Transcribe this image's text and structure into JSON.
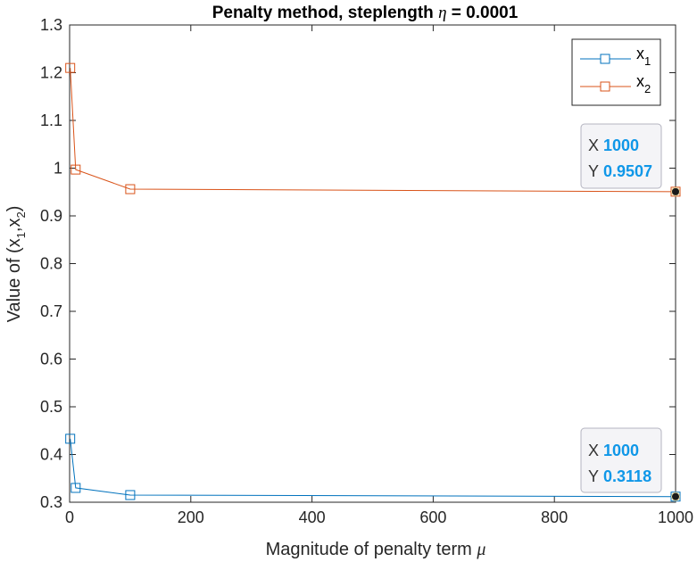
{
  "chart_data": {
    "type": "line",
    "title_prefix": "Penalty method, steplength ",
    "title_symbol": "η",
    "title_suffix": " = 0.0001",
    "xlabel_prefix": "Magnitude of penalty term ",
    "xlabel_symbol": "μ",
    "ylabel": {
      "a": "Value of (x",
      "sub1": "1",
      "b": ",x",
      "sub2": "2",
      "c": ")"
    },
    "xlim": [
      0,
      1000
    ],
    "ylim": [
      0.3,
      1.3
    ],
    "xticks": [
      "0",
      "200",
      "400",
      "600",
      "800",
      "1000"
    ],
    "yticks": [
      "0.3",
      "0.4",
      "0.5",
      "0.6",
      "0.7",
      "0.8",
      "0.9",
      "1",
      "1.1",
      "1.2",
      "1.3"
    ],
    "grid": false,
    "legend_position": "top-right",
    "series": [
      {
        "name": "x",
        "sub": "1",
        "color": "#0072bd",
        "x": [
          1,
          10,
          100,
          1000
        ],
        "y": [
          0.433,
          0.33,
          0.315,
          0.3118
        ]
      },
      {
        "name": "x",
        "sub": "2",
        "color": "#d95319",
        "x": [
          1,
          10,
          100,
          1000
        ],
        "y": [
          1.21,
          0.997,
          0.956,
          0.9507
        ]
      }
    ],
    "datatips": [
      {
        "series": 1,
        "x_label": "X",
        "x_value": "1000",
        "y_label": "Y",
        "y_value": "0.9507"
      },
      {
        "series": 0,
        "x_label": "X",
        "x_value": "1000",
        "y_label": "Y",
        "y_value": "0.3118"
      }
    ]
  }
}
